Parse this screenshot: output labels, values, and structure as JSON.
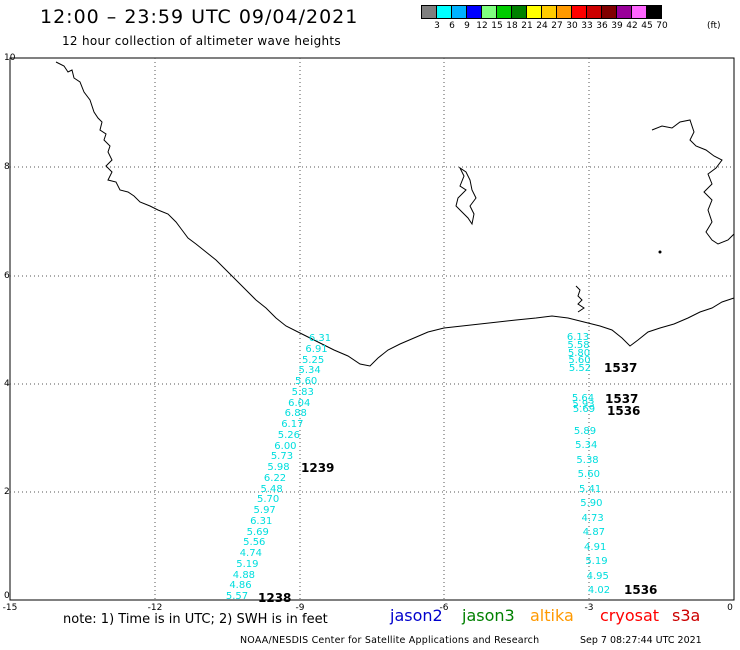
{
  "header": {
    "title": "12:00 – 23:59 UTC 09/04/2021",
    "subtitle": "12 hour collection of altimeter wave heights"
  },
  "color_scale": {
    "unit": "(ft)",
    "labels": [
      "3",
      "6",
      "9",
      "12",
      "15",
      "18",
      "21",
      "24",
      "27",
      "30",
      "33",
      "36",
      "39",
      "42",
      "45",
      "70"
    ],
    "colors": [
      "#7f7f7f",
      "#00ffff",
      "#00b2ff",
      "#0000ff",
      "#7fff7f",
      "#00cc00",
      "#008000",
      "#ffff00",
      "#ffcc00",
      "#ff9900",
      "#ff0000",
      "#cc0000",
      "#800000",
      "#990099",
      "#ff66ff",
      "#000000"
    ]
  },
  "axes": {
    "x_ticks": [
      "-15",
      "-12",
      "-9",
      "-6",
      "-3",
      "0"
    ],
    "y_ticks": [
      "0",
      "2",
      "4",
      "6",
      "8",
      "10"
    ]
  },
  "tracks": {
    "jason3": {
      "color": "#008000",
      "pass_labels": [
        "1239",
        "1238"
      ],
      "swh": [
        "6.31",
        "6.91",
        "5.25",
        "5.34",
        "5.60",
        "5.83",
        "6.04",
        "6.88",
        "6.17",
        "5.26",
        "6.00",
        "5.73",
        "5.98",
        "6.22",
        "5.48",
        "5.70",
        "5.97",
        "6.31",
        "5.69",
        "5.56",
        "4.74",
        "5.19",
        "4.88",
        "4.86",
        "5.57"
      ]
    },
    "cryosat": {
      "color": "#ff0000",
      "pass_labels": [
        "1537",
        "1537",
        "1536",
        "1536"
      ],
      "swh_upper": [
        "6.13",
        "5.58",
        "5.80",
        "5.60",
        "5.52"
      ],
      "swh_middle": [
        "5.64",
        "5.93",
        "5.69"
      ],
      "swh_lower": [
        "5.89",
        "5.34",
        "5.38",
        "5.60",
        "5.41",
        "5.90",
        "4.73",
        "4.87",
        "4.91",
        "5.19",
        "4.95",
        "4.02"
      ]
    }
  },
  "footer": {
    "note": "note: 1) Time is in UTC; 2) SWH is in feet",
    "satellites": [
      {
        "name": "jason2",
        "color": "#0000cc"
      },
      {
        "name": "jason3",
        "color": "#008000"
      },
      {
        "name": "altika",
        "color": "#ff9900"
      },
      {
        "name": "cryosat",
        "color": "#ff0000"
      },
      {
        "name": "s3a",
        "color": "#cc0000"
      }
    ],
    "credit": "NOAA/NESDIS Center for Satellite Applications and Research",
    "timestamp": "Sep  7 08:27:44 UTC 2021"
  }
}
